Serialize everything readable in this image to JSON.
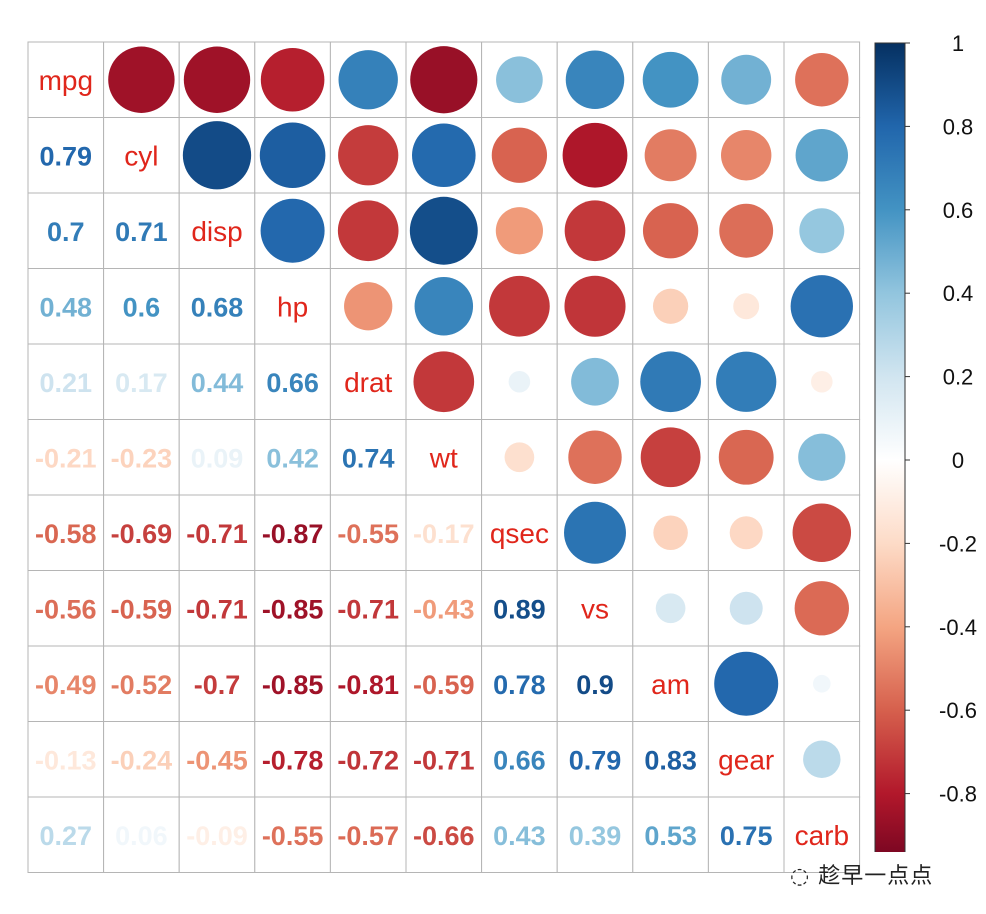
{
  "chart_data": {
    "type": "heatmap",
    "subtype": "correlation-matrix-mixed",
    "variables": [
      "mpg",
      "cyl",
      "disp",
      "hp",
      "drat",
      "wt",
      "qsec",
      "vs",
      "am",
      "gear",
      "carb"
    ],
    "upper_method": "circle",
    "lower_method": "number",
    "values": [
      [
        1,
        -0.85,
        -0.85,
        -0.78,
        0.68,
        -0.87,
        0.42,
        0.66,
        0.6,
        0.48,
        -0.55
      ],
      [
        0.79,
        1,
        0.9,
        0.83,
        -0.7,
        0.78,
        -0.59,
        -0.81,
        -0.52,
        -0.49,
        0.53
      ],
      [
        0.7,
        0.71,
        1,
        0.79,
        -0.71,
        0.89,
        -0.43,
        -0.71,
        -0.59,
        -0.56,
        0.39
      ],
      [
        0.48,
        0.6,
        0.68,
        1,
        -0.45,
        0.66,
        -0.71,
        -0.72,
        -0.24,
        -0.13,
        0.75
      ],
      [
        0.21,
        0.17,
        0.44,
        0.66,
        1,
        -0.71,
        0.09,
        0.44,
        0.71,
        0.7,
        -0.09
      ],
      [
        -0.21,
        -0.23,
        0.09,
        0.42,
        0.74,
        1,
        -0.17,
        -0.55,
        -0.69,
        -0.58,
        0.43
      ],
      [
        -0.58,
        -0.69,
        -0.71,
        -0.87,
        -0.55,
        -0.17,
        1,
        0.74,
        -0.23,
        -0.21,
        -0.66
      ],
      [
        -0.56,
        -0.59,
        -0.71,
        -0.85,
        -0.71,
        -0.43,
        0.89,
        1,
        0.17,
        0.21,
        -0.57
      ],
      [
        -0.49,
        -0.52,
        -0.7,
        -0.85,
        -0.81,
        -0.59,
        0.78,
        0.9,
        1,
        0.79,
        0.06
      ],
      [
        -0.13,
        -0.24,
        -0.45,
        -0.78,
        -0.72,
        -0.71,
        0.66,
        0.79,
        0.83,
        1,
        0.27
      ],
      [
        0.27,
        0.06,
        -0.09,
        -0.55,
        -0.57,
        -0.66,
        0.43,
        0.39,
        0.53,
        0.75,
        1
      ]
    ],
    "colorbar": {
      "range": [
        -1,
        1
      ],
      "ticks": [
        "1",
        "0.8",
        "0.6",
        "0.4",
        "0.2",
        "0",
        "-0.2",
        "-0.4",
        "-0.6",
        "-0.8"
      ],
      "tick_values": [
        1,
        0.8,
        0.6,
        0.4,
        0.2,
        0,
        -0.2,
        -0.4,
        -0.6,
        -0.8
      ],
      "palette": [
        "#67001F",
        "#B2182B",
        "#D6604D",
        "#F4A582",
        "#FDDBC7",
        "#FFFFFF",
        "#D1E5F0",
        "#92C5DE",
        "#4393C3",
        "#2166AC",
        "#053061"
      ]
    },
    "label_color": "#E0261B",
    "grid": true,
    "legend": "right"
  },
  "watermark": "趁早一点点"
}
